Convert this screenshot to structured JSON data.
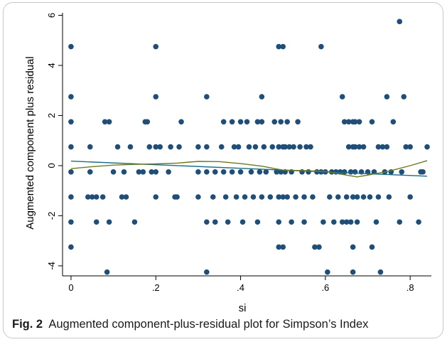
{
  "caption": {
    "label": "Fig. 2",
    "text": "Augmented component-plus-residual plot for Simpson’s Index"
  },
  "chart_data": {
    "type": "scatter",
    "xlabel": "si",
    "ylabel": "Augmented component plus residual",
    "xlim": [
      -0.02,
      0.85
    ],
    "ylim": [
      -4.4,
      6.1
    ],
    "xticks": [
      0,
      0.2,
      0.4,
      0.6,
      0.8
    ],
    "xtick_labels": [
      "0",
      ".2",
      ".4",
      ".6",
      ".8"
    ],
    "yticks": [
      -4,
      -2,
      0,
      2,
      4,
      6
    ],
    "ytick_labels": [
      "-4",
      "-2",
      "0",
      "2",
      "4",
      "6"
    ],
    "grid": false,
    "colors": {
      "points": "#1f4e79",
      "linear_fit": "#1a6e8a",
      "lowess": "#6b7a1e",
      "axis": "#000000"
    },
    "points": [
      [
        0.0,
        4.75
      ],
      [
        0.0,
        2.75
      ],
      [
        0.0,
        1.75
      ],
      [
        0.0,
        0.75
      ],
      [
        0.0,
        -0.25
      ],
      [
        0.0,
        -1.25
      ],
      [
        0.0,
        -2.25
      ],
      [
        0.0,
        -3.25
      ],
      [
        0.04,
        -1.25
      ],
      [
        0.045,
        0.75
      ],
      [
        0.045,
        -0.25
      ],
      [
        0.05,
        -1.25
      ],
      [
        0.06,
        -2.25
      ],
      [
        0.06,
        -1.25
      ],
      [
        0.075,
        -1.25
      ],
      [
        0.08,
        1.75
      ],
      [
        0.085,
        -4.25
      ],
      [
        0.09,
        1.75
      ],
      [
        0.09,
        -2.25
      ],
      [
        0.1,
        -0.25
      ],
      [
        0.11,
        0.75
      ],
      [
        0.12,
        -1.25
      ],
      [
        0.125,
        -0.25
      ],
      [
        0.13,
        -1.25
      ],
      [
        0.14,
        0.75
      ],
      [
        0.15,
        -2.25
      ],
      [
        0.16,
        -0.25
      ],
      [
        0.17,
        -0.25
      ],
      [
        0.175,
        1.75
      ],
      [
        0.18,
        1.75
      ],
      [
        0.185,
        0.75
      ],
      [
        0.19,
        -0.25
      ],
      [
        0.2,
        4.75
      ],
      [
        0.2,
        2.75
      ],
      [
        0.2,
        0.75
      ],
      [
        0.2,
        -0.25
      ],
      [
        0.2,
        -1.25
      ],
      [
        0.21,
        0.75
      ],
      [
        0.23,
        -0.25
      ],
      [
        0.235,
        0.75
      ],
      [
        0.245,
        -1.25
      ],
      [
        0.25,
        -1.25
      ],
      [
        0.255,
        0.75
      ],
      [
        0.26,
        1.75
      ],
      [
        0.3,
        0.75
      ],
      [
        0.3,
        -0.25
      ],
      [
        0.3,
        -1.25
      ],
      [
        0.32,
        2.75
      ],
      [
        0.32,
        0.75
      ],
      [
        0.32,
        -0.25
      ],
      [
        0.32,
        -2.25
      ],
      [
        0.32,
        -4.25
      ],
      [
        0.335,
        -1.25
      ],
      [
        0.34,
        -2.25
      ],
      [
        0.34,
        -0.25
      ],
      [
        0.355,
        0.75
      ],
      [
        0.36,
        1.75
      ],
      [
        0.36,
        -0.25
      ],
      [
        0.365,
        -1.25
      ],
      [
        0.37,
        -2.25
      ],
      [
        0.38,
        1.75
      ],
      [
        0.38,
        -0.25
      ],
      [
        0.385,
        0.75
      ],
      [
        0.39,
        -1.25
      ],
      [
        0.395,
        0.75
      ],
      [
        0.4,
        1.75
      ],
      [
        0.4,
        -0.25
      ],
      [
        0.405,
        -2.25
      ],
      [
        0.41,
        -1.25
      ],
      [
        0.415,
        1.75
      ],
      [
        0.42,
        0.75
      ],
      [
        0.425,
        -0.25
      ],
      [
        0.43,
        -1.25
      ],
      [
        0.435,
        0.75
      ],
      [
        0.44,
        1.75
      ],
      [
        0.44,
        -2.25
      ],
      [
        0.445,
        -0.25
      ],
      [
        0.45,
        2.75
      ],
      [
        0.45,
        1.75
      ],
      [
        0.45,
        -1.25
      ],
      [
        0.455,
        0.75
      ],
      [
        0.46,
        -0.25
      ],
      [
        0.47,
        -1.25
      ],
      [
        0.475,
        0.75
      ],
      [
        0.48,
        1.75
      ],
      [
        0.485,
        -0.25
      ],
      [
        0.49,
        4.75
      ],
      [
        0.49,
        0.75
      ],
      [
        0.49,
        -1.25
      ],
      [
        0.49,
        -2.25
      ],
      [
        0.49,
        -3.25
      ],
      [
        0.495,
        1.75
      ],
      [
        0.495,
        -0.25
      ],
      [
        0.5,
        4.75
      ],
      [
        0.5,
        0.75
      ],
      [
        0.5,
        -1.25
      ],
      [
        0.5,
        -3.25
      ],
      [
        0.505,
        0.75
      ],
      [
        0.505,
        -0.25
      ],
      [
        0.51,
        1.75
      ],
      [
        0.51,
        -1.25
      ],
      [
        0.515,
        0.75
      ],
      [
        0.52,
        -2.25
      ],
      [
        0.52,
        -0.25
      ],
      [
        0.525,
        0.75
      ],
      [
        0.53,
        -1.25
      ],
      [
        0.535,
        1.75
      ],
      [
        0.54,
        0.75
      ],
      [
        0.545,
        -0.25
      ],
      [
        0.55,
        -2.25
      ],
      [
        0.55,
        -1.25
      ],
      [
        0.555,
        0.75
      ],
      [
        0.56,
        -0.25
      ],
      [
        0.565,
        0.75
      ],
      [
        0.57,
        -1.25
      ],
      [
        0.575,
        -3.25
      ],
      [
        0.58,
        -0.25
      ],
      [
        0.585,
        -3.25
      ],
      [
        0.59,
        4.75
      ],
      [
        0.59,
        -0.25
      ],
      [
        0.595,
        -2.25
      ],
      [
        0.6,
        -0.25
      ],
      [
        0.605,
        -4.25
      ],
      [
        0.61,
        -1.25
      ],
      [
        0.615,
        -0.25
      ],
      [
        0.62,
        -2.25
      ],
      [
        0.625,
        -0.25
      ],
      [
        0.63,
        -1.25
      ],
      [
        0.635,
        -0.25
      ],
      [
        0.64,
        2.75
      ],
      [
        0.64,
        -2.25
      ],
      [
        0.645,
        1.75
      ],
      [
        0.645,
        -0.25
      ],
      [
        0.65,
        -2.25
      ],
      [
        0.65,
        -1.25
      ],
      [
        0.655,
        0.75
      ],
      [
        0.655,
        1.75
      ],
      [
        0.66,
        -0.25
      ],
      [
        0.66,
        -2.25
      ],
      [
        0.665,
        0.75
      ],
      [
        0.665,
        1.75
      ],
      [
        0.665,
        -1.25
      ],
      [
        0.665,
        -3.25
      ],
      [
        0.665,
        -4.25
      ],
      [
        0.67,
        1.75
      ],
      [
        0.67,
        -0.25
      ],
      [
        0.67,
        0.75
      ],
      [
        0.675,
        -2.25
      ],
      [
        0.675,
        -1.25
      ],
      [
        0.68,
        1.75
      ],
      [
        0.68,
        0.75
      ],
      [
        0.685,
        -0.25
      ],
      [
        0.69,
        -1.25
      ],
      [
        0.69,
        0.75
      ],
      [
        0.7,
        -0.25
      ],
      [
        0.705,
        -1.25
      ],
      [
        0.71,
        1.75
      ],
      [
        0.71,
        -3.25
      ],
      [
        0.715,
        -0.25
      ],
      [
        0.72,
        -2.25
      ],
      [
        0.725,
        0.75
      ],
      [
        0.725,
        -1.25
      ],
      [
        0.73,
        -4.25
      ],
      [
        0.735,
        0.75
      ],
      [
        0.74,
        -0.25
      ],
      [
        0.745,
        2.75
      ],
      [
        0.745,
        0.75
      ],
      [
        0.75,
        -1.25
      ],
      [
        0.755,
        -0.25
      ],
      [
        0.76,
        1.75
      ],
      [
        0.775,
        5.75
      ],
      [
        0.775,
        -2.25
      ],
      [
        0.78,
        -0.25
      ],
      [
        0.785,
        2.75
      ],
      [
        0.79,
        0.75
      ],
      [
        0.8,
        -1.25
      ],
      [
        0.8,
        0.75
      ],
      [
        0.82,
        -2.25
      ],
      [
        0.825,
        -0.25
      ],
      [
        0.83,
        -0.25
      ],
      [
        0.84,
        0.75
      ]
    ],
    "lines": {
      "linear_fit": {
        "x": [
          0.0,
          0.84
        ],
        "y": [
          0.18,
          -0.42
        ]
      },
      "lowess": {
        "x": [
          0.0,
          0.05,
          0.1,
          0.15,
          0.2,
          0.25,
          0.3,
          0.35,
          0.4,
          0.45,
          0.5,
          0.55,
          0.6,
          0.65,
          0.675,
          0.7,
          0.75,
          0.8,
          0.84
        ],
        "y": [
          -0.12,
          -0.04,
          0.02,
          0.05,
          0.07,
          0.1,
          0.17,
          0.16,
          0.08,
          -0.02,
          -0.18,
          -0.2,
          -0.23,
          -0.38,
          -0.45,
          -0.38,
          -0.22,
          0.0,
          0.2
        ]
      }
    }
  }
}
